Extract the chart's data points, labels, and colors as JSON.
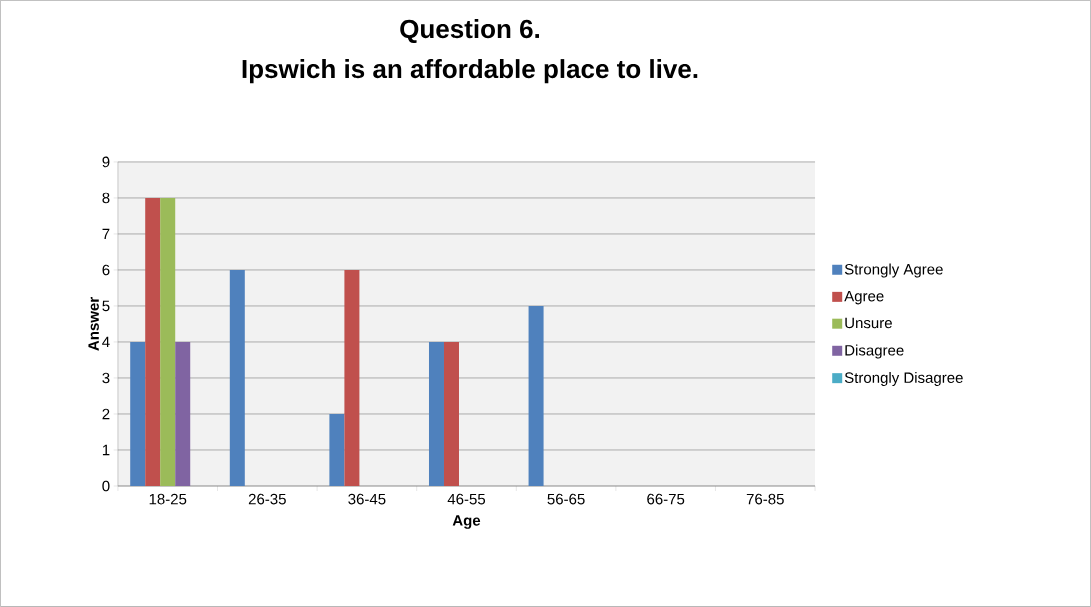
{
  "chart_data": {
    "type": "bar",
    "title": "Question 6.\nIpswich is an affordable place to live.",
    "xlabel": "Age",
    "ylabel": "Answer",
    "categories": [
      "18-25",
      "26-35",
      "36-45",
      "46-55",
      "56-65",
      "66-75",
      "76-85"
    ],
    "series": [
      {
        "name": "Strongly Agree",
        "color": "#4f81bd",
        "values": [
          4,
          6,
          2,
          4,
          5,
          0,
          0
        ]
      },
      {
        "name": "Agree",
        "color": "#c0504d",
        "values": [
          8,
          0,
          6,
          4,
          0,
          0,
          0
        ]
      },
      {
        "name": "Unsure",
        "color": "#9bbb59",
        "values": [
          8,
          0,
          0,
          0,
          0,
          0,
          0
        ]
      },
      {
        "name": "Disagree",
        "color": "#8064a2",
        "values": [
          4,
          0,
          0,
          0,
          0,
          0,
          0
        ]
      },
      {
        "name": "Strongly Disagree",
        "color": "#4bacc6",
        "values": [
          0,
          0,
          0,
          0,
          0,
          0,
          0
        ]
      }
    ],
    "ylim": [
      0,
      9
    ],
    "yticks": [
      0,
      1,
      2,
      3,
      4,
      5,
      6,
      7,
      8,
      9
    ],
    "grid": "y",
    "legend": "right"
  }
}
